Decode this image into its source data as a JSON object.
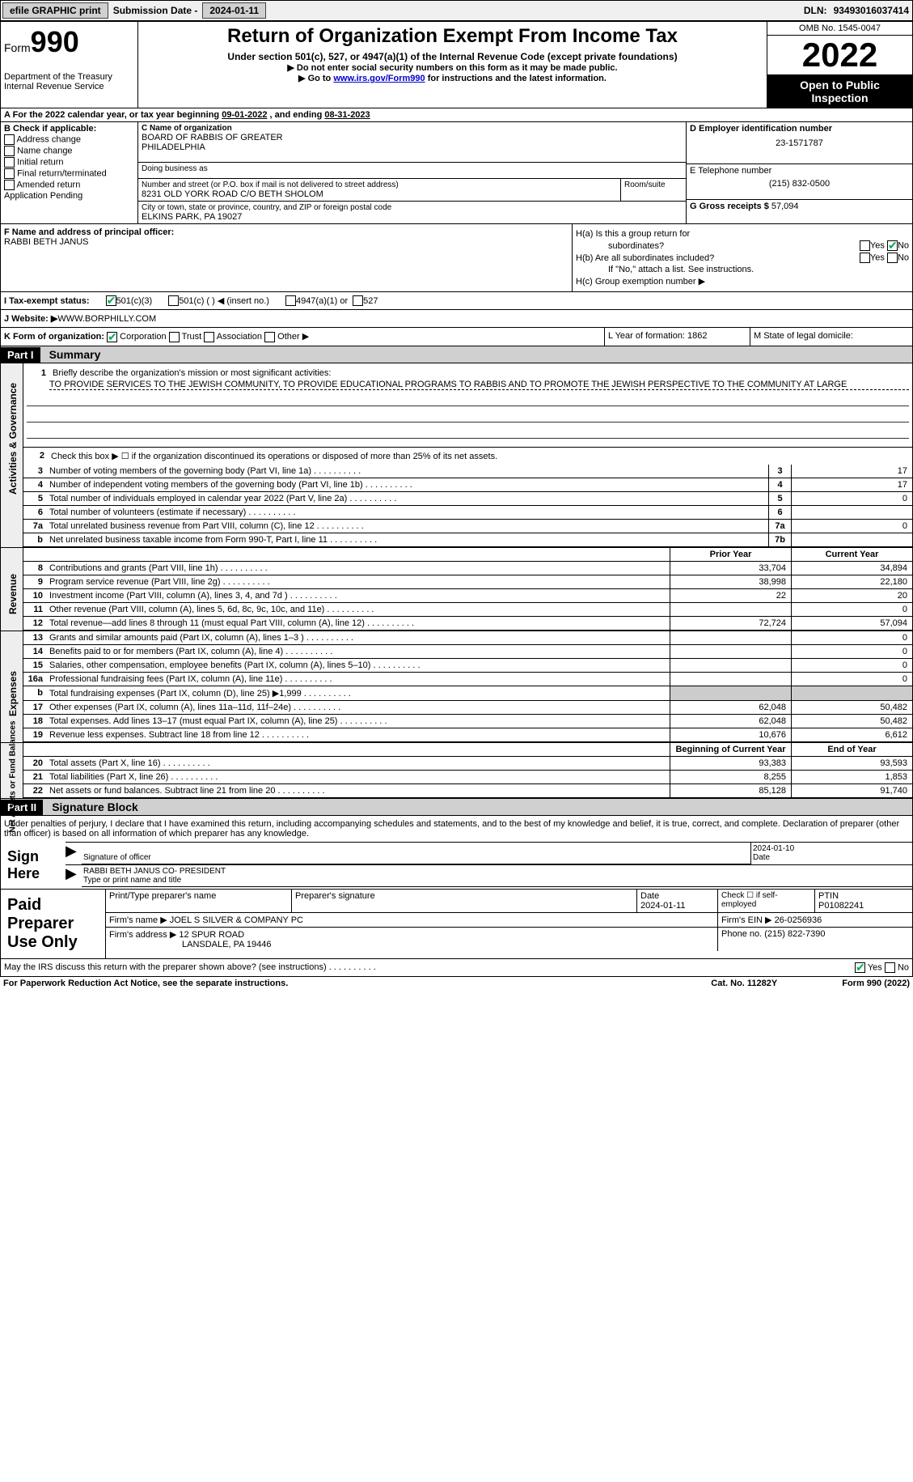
{
  "top": {
    "efile": "efile GRAPHIC print",
    "submission_label": "Submission Date - ",
    "submission_date": "2024-01-11",
    "dln_label": "DLN: ",
    "dln": "93493016037414"
  },
  "header": {
    "form_word": "Form",
    "form_num": "990",
    "dept": "Department of the Treasury",
    "irs": "Internal Revenue Service",
    "title": "Return of Organization Exempt From Income Tax",
    "sub": "Under section 501(c), 527, or 4947(a)(1) of the Internal Revenue Code (except private foundations)",
    "warn": "▶ Do not enter social security numbers on this form as it may be made public.",
    "goto_prefix": "▶ Go to ",
    "goto_link": "www.irs.gov/Form990",
    "goto_suffix": " for instructions and the latest information.",
    "omb": "OMB No. 1545-0047",
    "year": "2022",
    "open": "Open to Public Inspection"
  },
  "periodA": {
    "text": "A For the 2022 calendar year, or tax year beginning ",
    "begin": "09-01-2022",
    "mid": " , and ending ",
    "end": "08-31-2023"
  },
  "colB": {
    "header": "B Check if applicable:",
    "items": [
      "Address change",
      "Name change",
      "Initial return",
      "Final return/terminated",
      "Amended return",
      "Application Pending"
    ]
  },
  "colC": {
    "name_label": "C Name of organization",
    "name1": "BOARD OF RABBIS OF GREATER",
    "name2": "PHILADELPHIA",
    "dba_label": "Doing business as",
    "addr_label": "Number and street (or P.O. box if mail is not delivered to street address)",
    "addr": "8231 OLD YORK ROAD C/O BETH SHOLOM",
    "room_label": "Room/suite",
    "city_label": "City or town, state or province, country, and ZIP or foreign postal code",
    "city": "ELKINS PARK, PA  19027"
  },
  "colD": {
    "ein_label": "D Employer identification number",
    "ein": "23-1571787",
    "phone_label": "E Telephone number",
    "phone": "(215) 832-0500",
    "gross_label": "G Gross receipts $ ",
    "gross": "57,094"
  },
  "rowF": {
    "label": "F Name and address of principal officer:",
    "name": "RABBI BETH JANUS"
  },
  "rowH": {
    "ha": "H(a)  Is this a group return for",
    "ha2": "subordinates?",
    "hb": "H(b)  Are all subordinates included?",
    "hb_note": "If \"No,\" attach a list. See instructions.",
    "hc": "H(c)  Group exemption number ▶",
    "yes": "Yes",
    "no": "No"
  },
  "rowI": {
    "label": "I    Tax-exempt status:",
    "opt1": "501(c)(3)",
    "opt2": "501(c) (  ) ◀ (insert no.)",
    "opt3": "4947(a)(1) or",
    "opt4": "527"
  },
  "rowJ": {
    "label": "J   Website: ▶",
    "value": " WWW.BORPHILLY.COM"
  },
  "rowK": {
    "label": "K Form of organization:",
    "corp": "Corporation",
    "trust": "Trust",
    "assoc": "Association",
    "other": "Other ▶",
    "year_label": "L Year of formation: ",
    "year": "1862",
    "state_label": "M State of legal domicile:"
  },
  "part1": {
    "hdr": "Part I",
    "title": "Summary",
    "line1_label": "Briefly describe the organization's mission or most significant activities:",
    "mission": "TO PROVIDE SERVICES TO THE JEWISH COMMUNITY, TO PROVIDE EDUCATIONAL PROGRAMS TO RABBIS AND TO PROMOTE THE JEWISH PERSPECTIVE TO THE COMMUNITY AT LARGE",
    "line2": "Check this box ▶ ☐ if the organization discontinued its operations or disposed of more than 25% of its net assets.",
    "prior_hdr": "Prior Year",
    "current_hdr": "Current Year",
    "begin_hdr": "Beginning of Current Year",
    "end_hdr": "End of Year",
    "vtab_gov": "Activities & Governance",
    "vtab_rev": "Revenue",
    "vtab_exp": "Expenses",
    "vtab_net": "Net Assets or Fund Balances",
    "rows_gov": [
      {
        "n": "3",
        "d": "Number of voting members of the governing body (Part VI, line 1a)",
        "box": "3",
        "v": "17"
      },
      {
        "n": "4",
        "d": "Number of independent voting members of the governing body (Part VI, line 1b)",
        "box": "4",
        "v": "17"
      },
      {
        "n": "5",
        "d": "Total number of individuals employed in calendar year 2022 (Part V, line 2a)",
        "box": "5",
        "v": "0"
      },
      {
        "n": "6",
        "d": "Total number of volunteers (estimate if necessary)",
        "box": "6",
        "v": ""
      },
      {
        "n": "7a",
        "d": "Total unrelated business revenue from Part VIII, column (C), line 12",
        "box": "7a",
        "v": "0"
      },
      {
        "n": "b",
        "d": "Net unrelated business taxable income from Form 990-T, Part I, line 11",
        "box": "7b",
        "v": ""
      }
    ],
    "rows_rev": [
      {
        "n": "8",
        "d": "Contributions and grants (Part VIII, line 1h)",
        "p": "33,704",
        "c": "34,894"
      },
      {
        "n": "9",
        "d": "Program service revenue (Part VIII, line 2g)",
        "p": "38,998",
        "c": "22,180"
      },
      {
        "n": "10",
        "d": "Investment income (Part VIII, column (A), lines 3, 4, and 7d )",
        "p": "22",
        "c": "20"
      },
      {
        "n": "11",
        "d": "Other revenue (Part VIII, column (A), lines 5, 6d, 8c, 9c, 10c, and 11e)",
        "p": "",
        "c": "0"
      },
      {
        "n": "12",
        "d": "Total revenue—add lines 8 through 11 (must equal Part VIII, column (A), line 12)",
        "p": "72,724",
        "c": "57,094"
      }
    ],
    "rows_exp": [
      {
        "n": "13",
        "d": "Grants and similar amounts paid (Part IX, column (A), lines 1–3 )",
        "p": "",
        "c": "0"
      },
      {
        "n": "14",
        "d": "Benefits paid to or for members (Part IX, column (A), line 4)",
        "p": "",
        "c": "0"
      },
      {
        "n": "15",
        "d": "Salaries, other compensation, employee benefits (Part IX, column (A), lines 5–10)",
        "p": "",
        "c": "0"
      },
      {
        "n": "16a",
        "d": "Professional fundraising fees (Part IX, column (A), line 11e)",
        "p": "",
        "c": "0"
      },
      {
        "n": "b",
        "d": "Total fundraising expenses (Part IX, column (D), line 25) ▶1,999",
        "p": "shade",
        "c": "shade"
      },
      {
        "n": "17",
        "d": "Other expenses (Part IX, column (A), lines 11a–11d, 11f–24e)",
        "p": "62,048",
        "c": "50,482"
      },
      {
        "n": "18",
        "d": "Total expenses. Add lines 13–17 (must equal Part IX, column (A), line 25)",
        "p": "62,048",
        "c": "50,482"
      },
      {
        "n": "19",
        "d": "Revenue less expenses. Subtract line 18 from line 12",
        "p": "10,676",
        "c": "6,612"
      }
    ],
    "rows_net": [
      {
        "n": "20",
        "d": "Total assets (Part X, line 16)",
        "p": "93,383",
        "c": "93,593"
      },
      {
        "n": "21",
        "d": "Total liabilities (Part X, line 26)",
        "p": "8,255",
        "c": "1,853"
      },
      {
        "n": "22",
        "d": "Net assets or fund balances. Subtract line 21 from line 20",
        "p": "85,128",
        "c": "91,740"
      }
    ]
  },
  "part2": {
    "hdr": "Part II",
    "title": "Signature Block",
    "decl": "Under penalties of perjury, I declare that I have examined this return, including accompanying schedules and statements, and to the best of my knowledge and belief, it is true, correct, and complete. Declaration of preparer (other than officer) is based on all information of which preparer has any knowledge.",
    "sign_here": "Sign Here",
    "sig_officer": "Signature of officer",
    "sig_date": "2024-01-10",
    "date_label": "Date",
    "officer_name": "RABBI BETH JANUS  CO- PRESIDENT",
    "name_title_label": "Type or print name and title",
    "paid": "Paid Preparer Use Only",
    "prep_name_label": "Print/Type preparer's name",
    "prep_sig_label": "Preparer's signature",
    "prep_date_label": "Date",
    "prep_date": "2024-01-11",
    "self_emp": "Check ☐ if self-employed",
    "ptin_label": "PTIN",
    "ptin": "P01082241",
    "firm_name_label": "Firm's name   ▶ ",
    "firm_name": "JOEL S SILVER & COMPANY PC",
    "firm_ein_label": "Firm's EIN ▶ ",
    "firm_ein": "26-0256936",
    "firm_addr_label": "Firm's address ▶ ",
    "firm_addr1": "12 SPUR ROAD",
    "firm_addr2": "LANSDALE, PA  19446",
    "firm_phone_label": "Phone no. ",
    "firm_phone": "(215) 822-7390",
    "discuss": "May the IRS discuss this return with the preparer shown above? (see instructions)",
    "yes": "Yes",
    "no": "No"
  },
  "footer": {
    "left": "For Paperwork Reduction Act Notice, see the separate instructions.",
    "mid": "Cat. No. 11282Y",
    "right": "Form 990 (2022)"
  }
}
